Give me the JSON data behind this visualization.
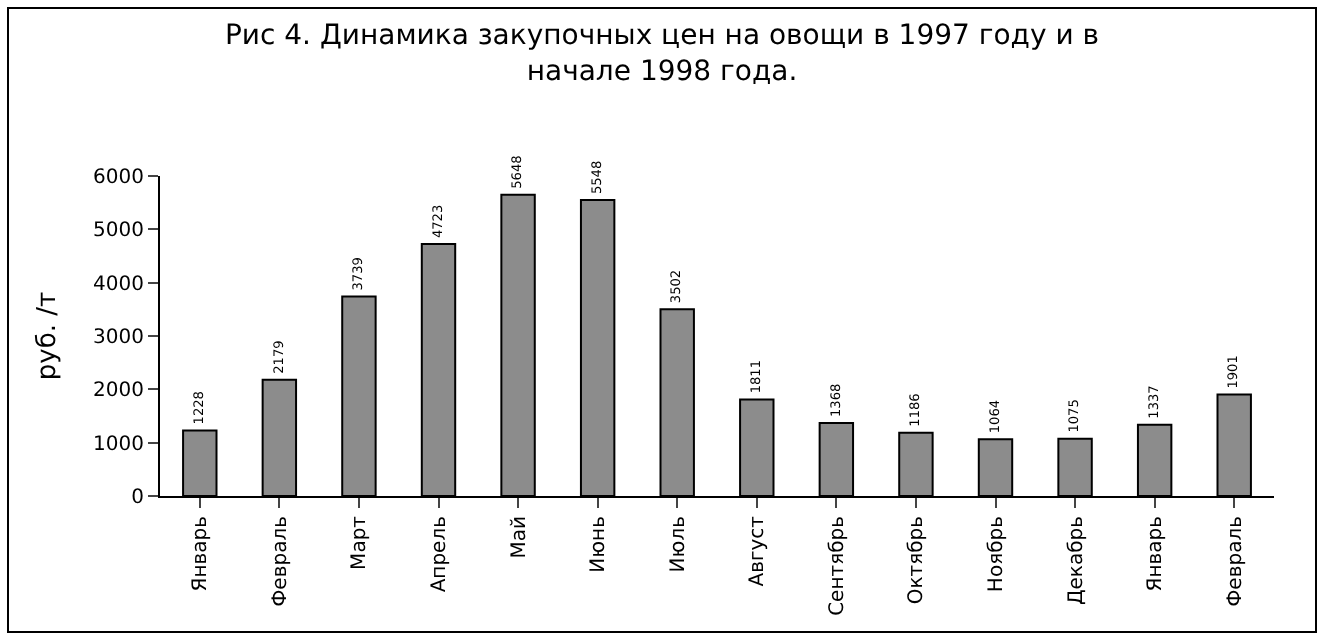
{
  "chart_data": {
    "type": "bar",
    "title": "Рис 4. Динамика закупочных цен на овощи в 1997 году и в начале 1998 года.",
    "ylabel": "руб. /т",
    "categories": [
      "Январь",
      "Февраль",
      "Март",
      "Апрель",
      "Май",
      "Июнь",
      "Июль",
      "Август",
      "Сентябрь",
      "Октябрь",
      "Ноябрь",
      "Декабрь",
      "Январь",
      "Февраль"
    ],
    "values": [
      1228,
      2179,
      3739,
      4723,
      5648,
      5548,
      3502,
      1811,
      1368,
      1186,
      1064,
      1075,
      1337,
      1901
    ],
    "color": "#8c8c8c",
    "ylim": [
      0,
      6000
    ],
    "yticks": [
      0,
      1000,
      2000,
      3000,
      4000,
      5000,
      6000
    ],
    "data_labels": true
  }
}
